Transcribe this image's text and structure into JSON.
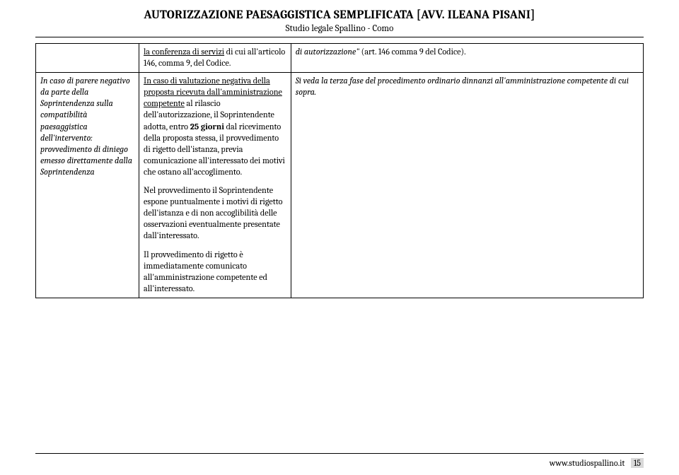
{
  "header": {
    "title": "AUTORIZZAZIONE PAESAGGISTICA SEMPLIFICATA [AVV. ILEANA PISANI]",
    "subtitle": "Studio legale Spallino - Como"
  },
  "row1": {
    "c1": "",
    "c2_a": "la conferenza di servizi",
    "c2_b": " di cui all'articolo 146, comma 9, del Codice.",
    "c3_a": "di autorizzazione\"",
    "c3_b": " (art. 146 comma 9 del Codice)."
  },
  "row2": {
    "c1": "In caso di parere negativo da parte della Soprintendenza sulla compatibilità paesaggistica dell'intervento: provvedimento di diniego emesso direttamente dalla Soprintendenza",
    "c2_p1_a": "In caso di valutazione negativa della proposta ricevuta dall'amministrazione competente",
    "c2_p1_b": " al rilascio dell'autorizzazione, il Soprintendente adotta, entro ",
    "c2_p1_c": "25 giorni",
    "c2_p1_d": " dal ricevimento della proposta stessa, il provvedimento di rigetto dell'istanza, previa comunicazione all'interessato dei motivi che ostano all'accoglimento.",
    "c2_p2": "Nel provvedimento il Soprintendente espone puntualmente i motivi di rigetto dell'istanza e di non accoglibilità delle osservazioni eventualmente presentate dall'interessato.",
    "c2_p3": "Il provvedimento di rigetto è immediatamente comunicato all'amministrazione competente ed all'interessato.",
    "c3": "Si veda la terza fase del procedimento ordinario dinnanzi all'amministrazione competente di cui sopra."
  },
  "footer": {
    "url": "www.studiospallino.it",
    "page": "15"
  }
}
